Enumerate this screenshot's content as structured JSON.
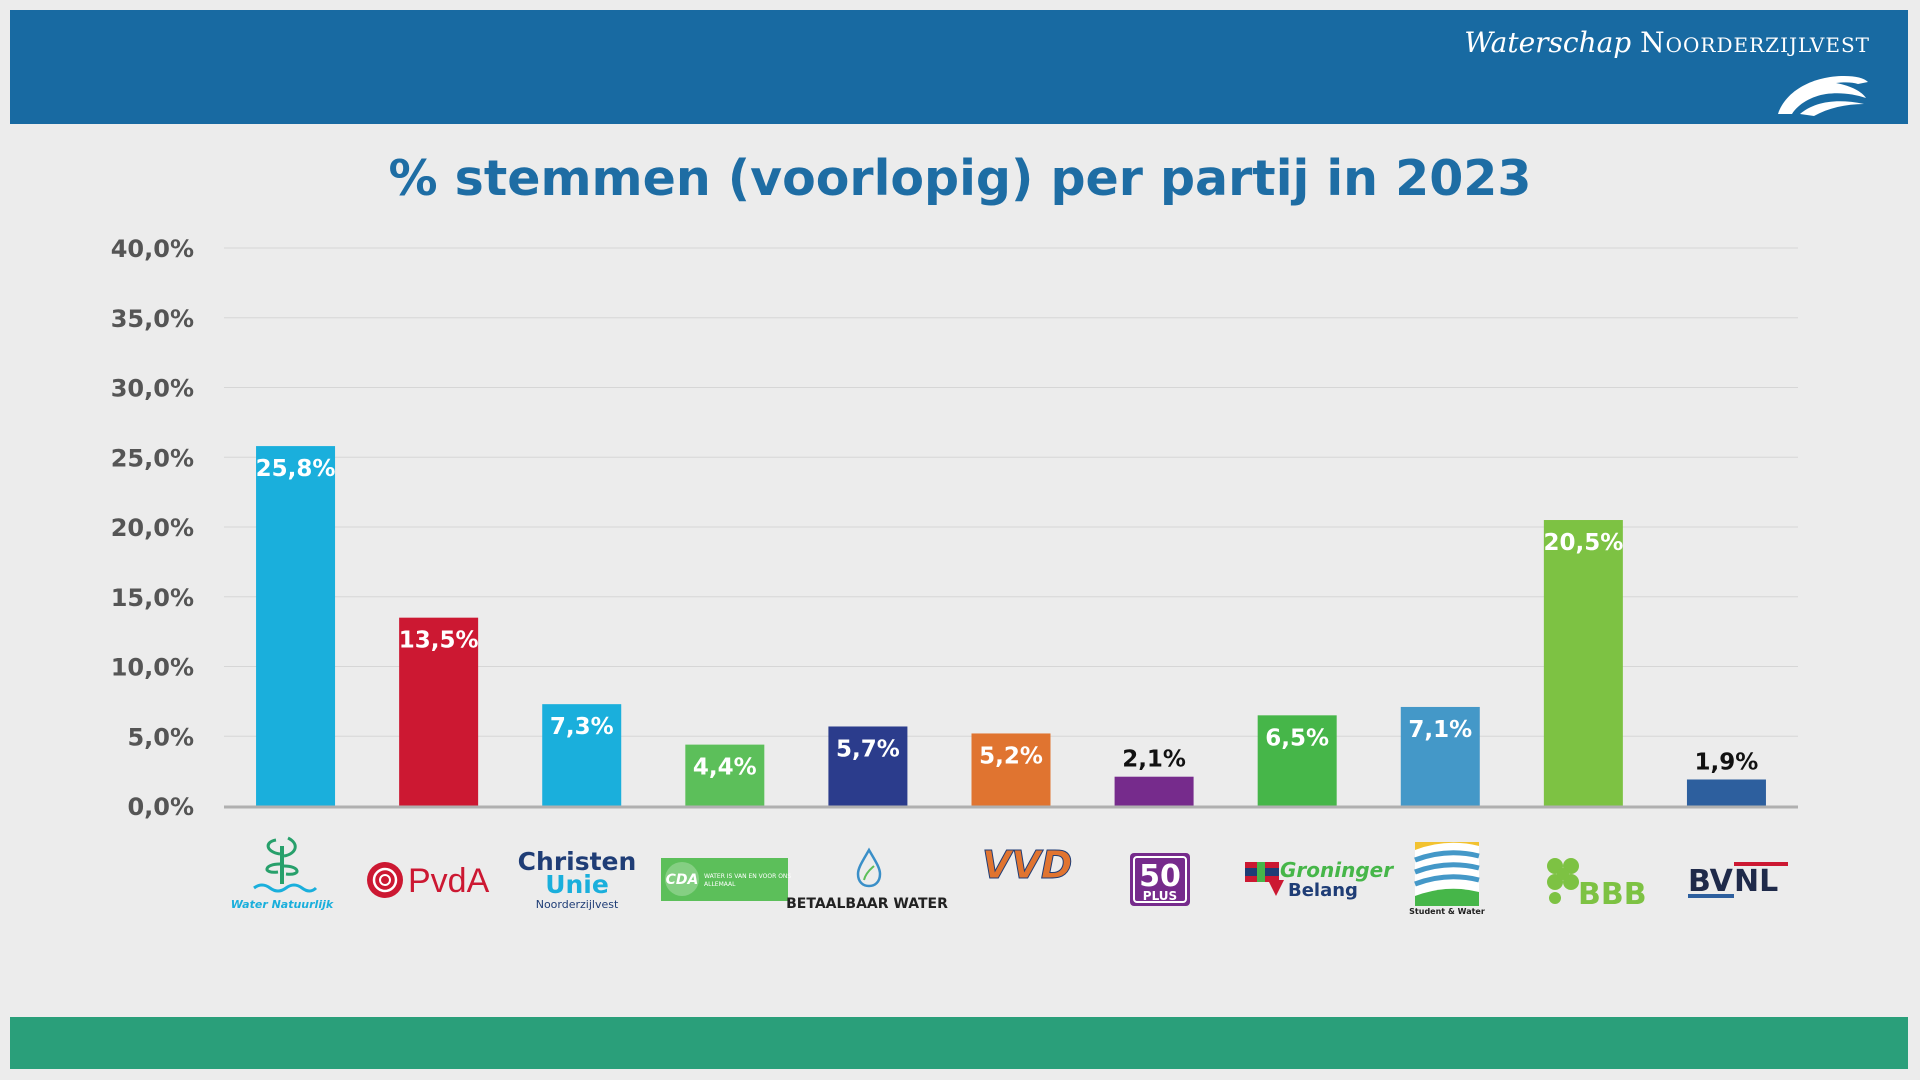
{
  "header": {
    "brand_script": "Waterschap",
    "brand_caps": "Noorderzijlvest",
    "brand_color": "#186aa2"
  },
  "footer": {
    "color": "#2a9f7a"
  },
  "logos": {
    "water_natuurlijk": "Water Natuurlijk",
    "pvda": "PvdA",
    "christenunie_1": "Christen",
    "christenunie_2": "Unie",
    "christenunie_3": "Noorderzijlvest",
    "cda_1": "CDA",
    "cda_2": "WATER IS VAN EN VOOR ONS",
    "cda_3": "ALLEMAAL",
    "betaalbaar_water": "BETAALBAAR WATER",
    "vvd": "VVD",
    "plus50_1": "50",
    "plus50_2": "PLUS",
    "groninger_1": "Groninger",
    "groninger_2": "Belang",
    "student_water": "Student & Water",
    "bbb": "BBB",
    "bvnl_1": "BV",
    "bvnl_2": "NL"
  },
  "chart_data": {
    "type": "bar",
    "title": "% stemmen (voorlopig) per partij in 2023",
    "xlabel": "",
    "ylabel": "",
    "ylim": [
      0,
      40
    ],
    "y_ticks": [
      "0,0%",
      "5,0%",
      "10,0%",
      "15,0%",
      "20,0%",
      "25,0%",
      "30,0%",
      "35,0%",
      "40,0%"
    ],
    "grid": true,
    "legend": "none",
    "categories": [
      "Water Natuurlijk",
      "PvdA",
      "ChristenUnie",
      "CDA",
      "Betaalbaar Water",
      "VVD",
      "50PLUS",
      "Groninger Belang",
      "Student & Water",
      "BBB",
      "BVNL"
    ],
    "values": [
      25.8,
      13.5,
      7.3,
      4.4,
      5.7,
      5.2,
      2.1,
      6.5,
      7.1,
      20.5,
      1.9
    ],
    "data_labels": [
      "25,8%",
      "13,5%",
      "7,3%",
      "4,4%",
      "5,7%",
      "5,2%",
      "2,1%",
      "6,5%",
      "7,1%",
      "20,5%",
      "1,9%"
    ],
    "colors": [
      "#1aafdc",
      "#cc1832",
      "#1aafdc",
      "#5cbf5a",
      "#2b3c8c",
      "#e07430",
      "#762b8c",
      "#46b649",
      "#4498c8",
      "#7dc243",
      "#2d5f9e"
    ],
    "label_colors": [
      "#ffffff",
      "#ffffff",
      "#ffffff",
      "#ffffff",
      "#ffffff",
      "#ffffff",
      "#111111",
      "#ffffff",
      "#ffffff",
      "#ffffff",
      "#111111"
    ]
  }
}
